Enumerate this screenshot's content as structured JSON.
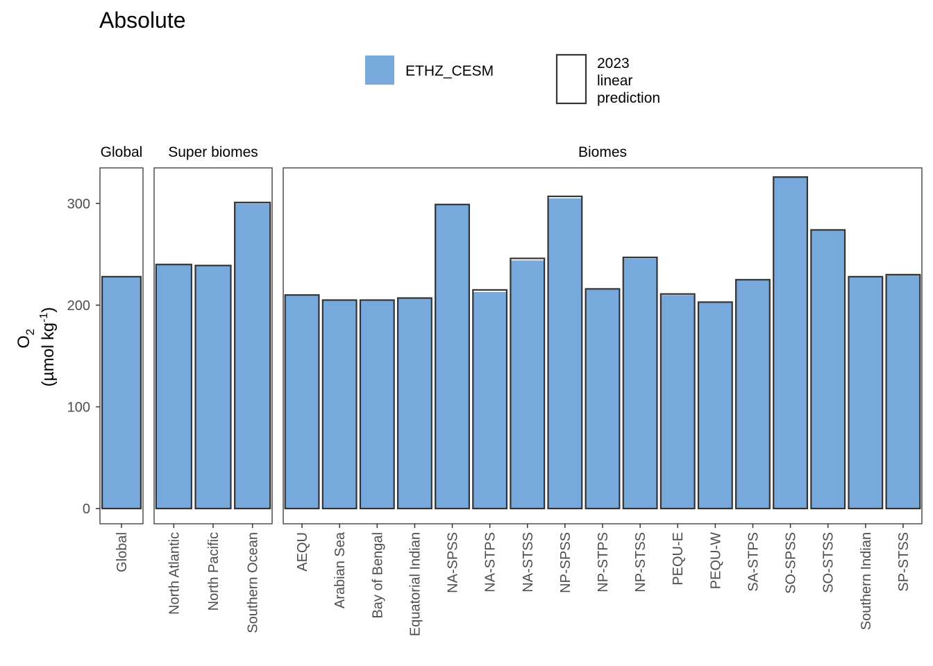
{
  "chart_data": {
    "type": "bar",
    "title": "Absolute",
    "ylabel": "O2 (µmol kg-1)",
    "ylabel_parts": {
      "main": "O",
      "sub": "2",
      "unit_open": "(µmol kg",
      "sup": "-1",
      "unit_close": ")"
    },
    "ylim": [
      -15,
      335
    ],
    "yticks": [
      0,
      100,
      200,
      300
    ],
    "grid": false,
    "legend": {
      "placement": "top",
      "items": [
        {
          "label": "ETHZ_CESM",
          "kind": "fill",
          "color": "#77a9dc"
        },
        {
          "label": "2023 linear prediction",
          "lines": [
            "2023",
            "linear",
            "prediction"
          ],
          "kind": "outline",
          "color": "#333333"
        }
      ]
    },
    "panels": [
      {
        "strip": "Global",
        "categories": [
          "Global"
        ],
        "values": [
          228
        ],
        "predictions": [
          228
        ]
      },
      {
        "strip": "Super biomes",
        "categories": [
          "North Atlantic",
          "North Pacific",
          "Southern Ocean"
        ],
        "values": [
          240,
          239,
          300
        ],
        "predictions": [
          240,
          239,
          301
        ]
      },
      {
        "strip": "Biomes",
        "categories": [
          "AEQU",
          "Arabian Sea",
          "Bay of Bengal",
          "Equatorial Indian",
          "NA-SPSS",
          "NA-STPS",
          "NA-STSS",
          "NP-SPSS",
          "NP-STPS",
          "NP-STSS",
          "PEQU-E",
          "PEQU-W",
          "SA-STPS",
          "SO-SPSS",
          "SO-STSS",
          "Southern Indian",
          "SP-STSS"
        ],
        "values": [
          210,
          205,
          205,
          207,
          299,
          213,
          244,
          305,
          216,
          246,
          210,
          203,
          225,
          326,
          274,
          228,
          230
        ],
        "predictions": [
          210,
          205,
          205,
          207,
          299,
          215,
          246,
          307,
          216,
          247,
          211,
          203,
          225,
          326,
          274,
          228,
          230
        ]
      }
    ],
    "colors": {
      "bar_fill": "#77a9dc",
      "bar_outline": "#333333",
      "panel_border": "#333333",
      "axis_text": "#4d4d4d"
    }
  }
}
